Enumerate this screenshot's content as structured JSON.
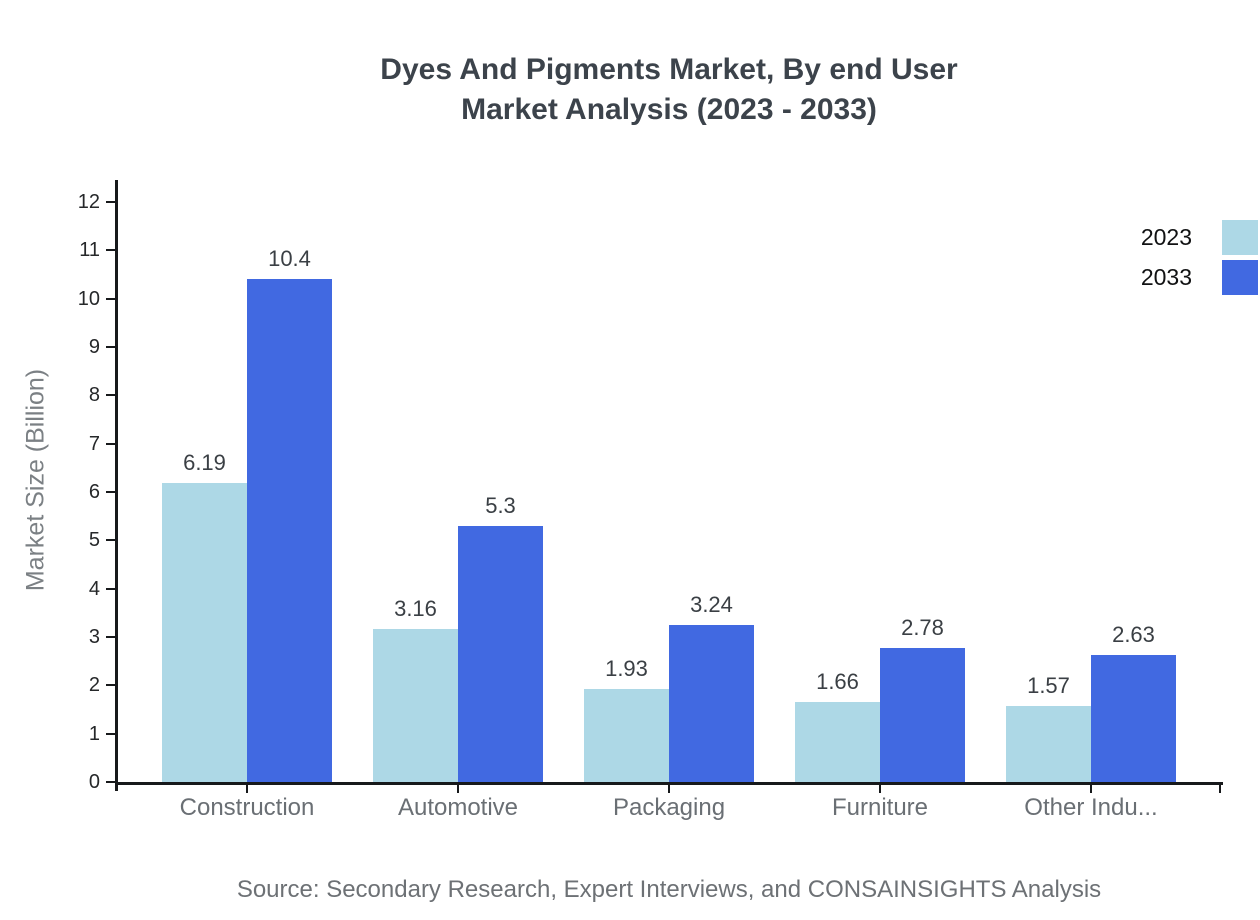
{
  "page": {
    "background": "#ffffff"
  },
  "chart_data": {
    "type": "bar",
    "title": "Dyes And Pigments Market, By end User Market Analysis (2023 - 2033)",
    "title_lines": [
      "Dyes And Pigments Market, By end User",
      "Market Analysis (2023 - 2033)"
    ],
    "ylabel": "Market Size (Billion)",
    "xlabel": "",
    "categories": [
      "Construction",
      "Automotive",
      "Packaging",
      "Furniture",
      "Other Indu..."
    ],
    "series": [
      {
        "name": "2023",
        "color": "#ADD8E6",
        "values": [
          6.19,
          3.16,
          1.93,
          1.66,
          1.57
        ],
        "labels": [
          "6.19",
          "3.16",
          "1.93",
          "1.66",
          "1.57"
        ]
      },
      {
        "name": "2033",
        "color": "#4169E1",
        "values": [
          10.4,
          5.3,
          3.24,
          2.78,
          2.63
        ],
        "labels": [
          "10.4",
          "5.3",
          "3.24",
          "2.78",
          "2.63"
        ]
      }
    ],
    "y_ticks": [
      0,
      1,
      2,
      3,
      4,
      5,
      6,
      7,
      8,
      9,
      10,
      11,
      12
    ],
    "ylim": [
      0,
      12
    ],
    "grid": false,
    "legend_position": "top-right",
    "source": "Source: Secondary Research, Expert Interviews, and CONSAINSIGHTS Analysis"
  },
  "colors": {
    "axis": "#17191b",
    "title_text": "#3c434b",
    "y_tick_label": "#26282a",
    "category_label": "#6a6f74",
    "value_label": "#3a3f44",
    "y_axis_title": "#7b8084",
    "source_text": "#6d7175"
  }
}
